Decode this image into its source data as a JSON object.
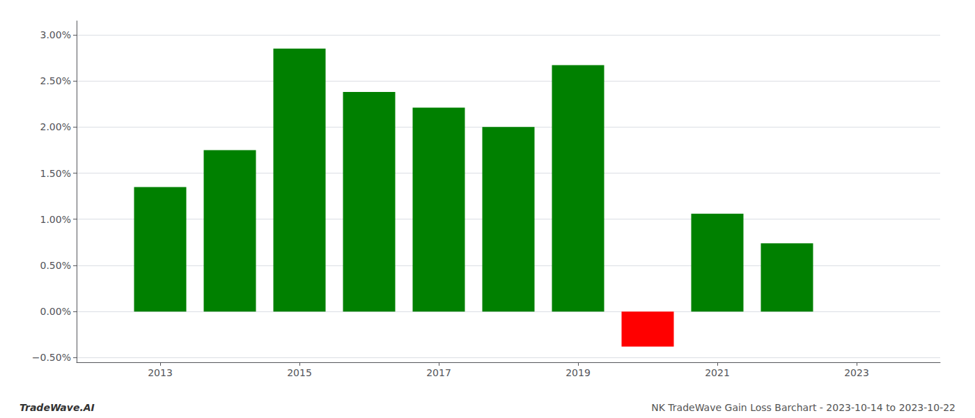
{
  "chart_data": {
    "type": "bar",
    "x": [
      2013,
      2014,
      2015,
      2016,
      2017,
      2018,
      2019,
      2020,
      2021,
      2022
    ],
    "values": [
      0.0135,
      0.0175,
      0.0285,
      0.0238,
      0.0221,
      0.02,
      0.0267,
      -0.0038,
      0.0106,
      0.0074
    ],
    "colors": [
      "#008000",
      "#008000",
      "#008000",
      "#008000",
      "#008000",
      "#008000",
      "#008000",
      "#ff0000",
      "#008000",
      "#008000"
    ],
    "xlim": [
      2011.8,
      2024.2
    ],
    "xticks": [
      2013,
      2015,
      2017,
      2019,
      2021,
      2023
    ],
    "ylim": [
      -0.0055,
      0.0315
    ],
    "yticks": [
      {
        "value": -0.005,
        "label": "−0.50%"
      },
      {
        "value": 0.0,
        "label": "0.00%"
      },
      {
        "value": 0.005,
        "label": "0.50%"
      },
      {
        "value": 0.01,
        "label": "1.00%"
      },
      {
        "value": 0.015,
        "label": "1.50%"
      },
      {
        "value": 0.02,
        "label": "2.00%"
      },
      {
        "value": 0.025,
        "label": "2.50%"
      },
      {
        "value": 0.03,
        "label": "3.00%"
      }
    ],
    "grid": true,
    "annotations": [
      "TradeWave.AI",
      "NK TradeWave Gain Loss Barchart - 2023-10-14 to 2023-10-22"
    ]
  }
}
